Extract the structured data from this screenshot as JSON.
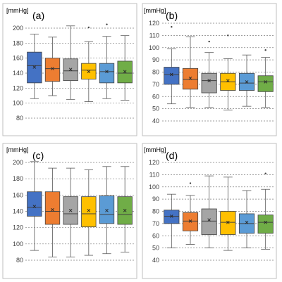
{
  "chart_data": [
    {
      "type": "box",
      "panel_label": "(a)",
      "unit_label": "[mmHg]",
      "ylim": [
        80,
        210
      ],
      "yticks": [
        80,
        100,
        120,
        140,
        160,
        180,
        200
      ],
      "grid": "horizontal-dashed",
      "series": [
        {
          "color": "#4472c4",
          "min": 106,
          "q1": 127,
          "median": 150,
          "mean": 148,
          "q3": 168,
          "max": 192,
          "outliers": []
        },
        {
          "color": "#ed7d31",
          "min": 110,
          "q1": 129,
          "median": 146,
          "mean": 146,
          "q3": 160,
          "max": 188,
          "outliers": []
        },
        {
          "color": "#a5a5a5",
          "min": 105,
          "q1": 130,
          "median": 143,
          "mean": 145,
          "q3": 159,
          "max": 203,
          "outliers": []
        },
        {
          "color": "#ffc000",
          "min": 102,
          "q1": 132,
          "median": 144,
          "mean": 142,
          "q3": 153,
          "max": 182,
          "outliers": [
            201
          ]
        },
        {
          "color": "#5b9bd5",
          "min": 106,
          "q1": 127,
          "median": 142,
          "mean": 142,
          "q3": 153,
          "max": 189,
          "outliers": [
            205
          ]
        },
        {
          "color": "#70ad47",
          "min": 104,
          "q1": 127,
          "median": 140,
          "mean": 142,
          "q3": 156,
          "max": 190,
          "outliers": []
        }
      ]
    },
    {
      "type": "box",
      "panel_label": "(b)",
      "unit_label": "[mmHg]",
      "ylim": [
        40,
        125
      ],
      "yticks": [
        40,
        50,
        60,
        70,
        80,
        90,
        100,
        110,
        120
      ],
      "grid": "horizontal-dashed",
      "series": [
        {
          "color": "#4472c4",
          "min": 54,
          "q1": 70,
          "median": 78,
          "mean": 78,
          "q3": 84,
          "max": 99,
          "outliers": [
            117
          ]
        },
        {
          "color": "#ed7d31",
          "min": 51,
          "q1": 66,
          "median": 74,
          "mean": 75,
          "q3": 83,
          "max": 109,
          "outliers": []
        },
        {
          "color": "#a5a5a5",
          "min": 51,
          "q1": 63,
          "median": 73,
          "mean": 73,
          "q3": 79,
          "max": 96,
          "outliers": [
            105
          ]
        },
        {
          "color": "#ffc000",
          "min": 49,
          "q1": 65,
          "median": 72,
          "mean": 73,
          "q3": 79,
          "max": 91,
          "outliers": [
            110
          ]
        },
        {
          "color": "#5b9bd5",
          "min": 52,
          "q1": 65,
          "median": 71,
          "mean": 72,
          "q3": 79,
          "max": 94,
          "outliers": []
        },
        {
          "color": "#70ad47",
          "min": 51,
          "q1": 64,
          "median": 72,
          "mean": 72,
          "q3": 77,
          "max": 92,
          "outliers": [
            98
          ]
        }
      ]
    },
    {
      "type": "box",
      "panel_label": "(c)",
      "unit_label": "[mmHg]",
      "ylim": [
        80,
        210
      ],
      "yticks": [
        80,
        100,
        120,
        140,
        160,
        180,
        200
      ],
      "grid": "horizontal-dashed",
      "series": [
        {
          "color": "#4472c4",
          "min": 92,
          "q1": 134,
          "median": 145,
          "mean": 146,
          "q3": 164,
          "max": 201,
          "outliers": []
        },
        {
          "color": "#ed7d31",
          "min": 84,
          "q1": 124,
          "median": 140,
          "mean": 142,
          "q3": 164,
          "max": 193,
          "outliers": []
        },
        {
          "color": "#a5a5a5",
          "min": 84,
          "q1": 124,
          "median": 137,
          "mean": 141,
          "q3": 158,
          "max": 193,
          "outliers": []
        },
        {
          "color": "#ffc000",
          "min": 86,
          "q1": 121,
          "median": 137,
          "mean": 141,
          "q3": 158,
          "max": 191,
          "outliers": []
        },
        {
          "color": "#5b9bd5",
          "min": 88,
          "q1": 125,
          "median": 136,
          "mean": 141,
          "q3": 159,
          "max": 195,
          "outliers": []
        },
        {
          "color": "#70ad47",
          "min": 90,
          "q1": 124,
          "median": 136,
          "mean": 141,
          "q3": 158,
          "max": 195,
          "outliers": []
        }
      ]
    },
    {
      "type": "box",
      "panel_label": "(d)",
      "unit_label": "[mmHg]",
      "ylim": [
        40,
        125
      ],
      "yticks": [
        40,
        50,
        60,
        70,
        80,
        90,
        100,
        110,
        120
      ],
      "grid": "horizontal-dashed",
      "series": [
        {
          "color": "#4472c4",
          "min": 50,
          "q1": 70,
          "median": 76,
          "mean": 76,
          "q3": 81,
          "max": 94,
          "outliers": []
        },
        {
          "color": "#ed7d31",
          "min": 53,
          "q1": 64,
          "median": 72,
          "mean": 72,
          "q3": 79,
          "max": 93,
          "outliers": [
            103
          ]
        },
        {
          "color": "#a5a5a5",
          "min": 50,
          "q1": 61,
          "median": 72,
          "mean": 73,
          "q3": 82,
          "max": 109,
          "outliers": []
        },
        {
          "color": "#ffc000",
          "min": 48,
          "q1": 61,
          "median": 71,
          "mean": 71,
          "q3": 80,
          "max": 108,
          "outliers": []
        },
        {
          "color": "#5b9bd5",
          "min": 50,
          "q1": 62,
          "median": 70,
          "mean": 71,
          "q3": 78,
          "max": 97,
          "outliers": []
        },
        {
          "color": "#70ad47",
          "min": 49,
          "q1": 62,
          "median": 71,
          "mean": 71,
          "q3": 77,
          "max": 98,
          "outliers": [
            111
          ]
        }
      ]
    }
  ]
}
